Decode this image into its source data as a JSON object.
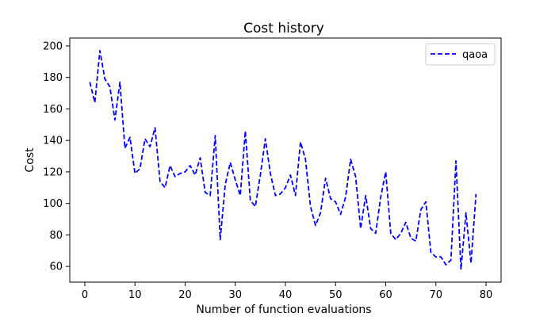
{
  "chart_data": {
    "type": "line",
    "title": "Cost history",
    "xlabel": "Number of function evaluations",
    "ylabel": "Cost",
    "xlim": [
      -3,
      83
    ],
    "ylim": [
      50,
      205
    ],
    "xticks": [
      0,
      10,
      20,
      30,
      40,
      50,
      60,
      70,
      80
    ],
    "yticks": [
      60,
      80,
      100,
      120,
      140,
      160,
      180,
      200
    ],
    "grid": false,
    "legend_position": "top-right",
    "series": [
      {
        "name": "qaoa",
        "color": "#0000ff",
        "line_style": "dashed",
        "x": [
          1,
          2,
          3,
          4,
          5,
          6,
          7,
          8,
          9,
          10,
          11,
          12,
          13,
          14,
          15,
          16,
          17,
          18,
          19,
          20,
          21,
          22,
          23,
          24,
          25,
          26,
          27,
          28,
          29,
          30,
          31,
          32,
          33,
          34,
          35,
          36,
          37,
          38,
          39,
          40,
          41,
          42,
          43,
          44,
          45,
          46,
          47,
          48,
          49,
          50,
          51,
          52,
          53,
          54,
          55,
          56,
          57,
          58,
          59,
          60,
          61,
          62,
          63,
          64,
          65,
          66,
          67,
          68,
          69,
          70,
          71,
          72,
          73,
          74,
          75,
          76,
          77,
          78
        ],
        "y": [
          177,
          164,
          197,
          179,
          174,
          153,
          177,
          135,
          142,
          119,
          122,
          141,
          136,
          148,
          114,
          110,
          124,
          117,
          119,
          120,
          124,
          118,
          129,
          107,
          105,
          143,
          77,
          112,
          126,
          115,
          105,
          146,
          102,
          98,
          118,
          141,
          119,
          105,
          106,
          110,
          118,
          105,
          139,
          128,
          98,
          86,
          94,
          116,
          103,
          101,
          93,
          104,
          128,
          117,
          84,
          105,
          84,
          81,
          104,
          120,
          81,
          77,
          81,
          88,
          78,
          76,
          96,
          101,
          69,
          66,
          66,
          61,
          64,
          127,
          58,
          94,
          62,
          106
        ]
      }
    ]
  }
}
